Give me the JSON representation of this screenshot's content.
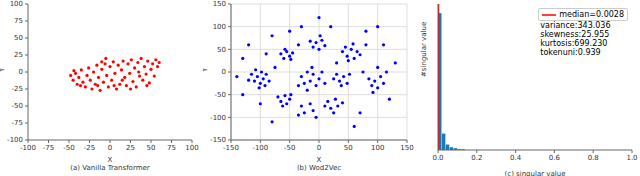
{
  "chart_data": [
    {
      "type": "scatter",
      "title": "(a) Vanilla Transformer",
      "xlabel": "X",
      "ylabel": "Y",
      "color": "#ff0000",
      "marker": "circle",
      "grid": false,
      "xlim": [
        -100,
        100
      ],
      "xticks": [
        -100,
        -75,
        -50,
        -25,
        0,
        25,
        50,
        75,
        100
      ],
      "ylim": [
        -100,
        100
      ],
      "yticks": [
        -100,
        -75,
        -50,
        -25,
        0,
        25,
        50,
        75,
        100
      ],
      "x": [
        -48,
        -45,
        -42,
        -40,
        -38,
        -35,
        -33,
        -30,
        -28,
        -26,
        -24,
        -22,
        -20,
        -18,
        -16,
        -14,
        -12,
        -10,
        -8,
        -6,
        -4,
        -2,
        0,
        2,
        4,
        6,
        8,
        10,
        12,
        14,
        16,
        18,
        20,
        22,
        24,
        26,
        28,
        30,
        32,
        34,
        36,
        38,
        40,
        42,
        44,
        46,
        48,
        50,
        52,
        54,
        56,
        58,
        60,
        -36,
        -15,
        5,
        15,
        -5,
        25,
        45,
        -44,
        35,
        -10
      ],
      "values": [
        -5,
        -12,
        -2,
        -18,
        -8,
        3,
        -15,
        -22,
        -5,
        6,
        -12,
        -25,
        0,
        -18,
        10,
        -8,
        -27,
        4,
        -15,
        12,
        -5,
        -22,
        8,
        -12,
        15,
        -2,
        -25,
        10,
        -18,
        3,
        16,
        -8,
        -20,
        12,
        -2,
        18,
        -14,
        6,
        -22,
        14,
        -6,
        20,
        -12,
        8,
        -3,
        16,
        -16,
        4,
        12,
        -6,
        18,
        8,
        14,
        -20,
        -20,
        -20,
        -12,
        20,
        -25,
        -20,
        2,
        0,
        15
      ]
    },
    {
      "type": "scatter",
      "title": "(b) Wod2Vec",
      "xlabel": "X",
      "ylabel": "Y",
      "color": "#0000ff",
      "marker": "circle",
      "grid": true,
      "xlim": [
        -150,
        150
      ],
      "xticks": [
        -150,
        -100,
        -50,
        0,
        50,
        100,
        150
      ],
      "ylim": [
        -150,
        150
      ],
      "yticks": [
        -150,
        -100,
        -50,
        0,
        50,
        100,
        150
      ],
      "x": [
        -115,
        -110,
        -105,
        -100,
        -98,
        -95,
        -92,
        -108,
        -120,
        -90,
        -102,
        -85,
        -65,
        -60,
        -55,
        -50,
        -48,
        -58,
        -45,
        -70,
        -65,
        -58,
        -55,
        -50,
        -62,
        -48,
        -10,
        -5,
        0,
        5,
        10,
        -15,
        2,
        40,
        48,
        55,
        60,
        65,
        50,
        70,
        45,
        58,
        -30,
        -25,
        -20,
        -15,
        -10,
        -5,
        0,
        -20,
        -35,
        5,
        -12,
        10,
        30,
        35,
        42,
        48,
        38,
        52,
        25,
        85,
        90,
        95,
        100,
        105,
        110,
        92,
        115,
        100,
        15,
        20,
        28,
        32,
        40,
        25,
        10,
        -30,
        -25,
        -15,
        -10,
        -35,
        -5,
        -130,
        -120,
        -80,
        -90,
        -30,
        20,
        80,
        110,
        130,
        120,
        70,
        -100,
        -130,
        -80,
        60,
        0,
        100,
        -50,
        75,
        -75,
        -35,
        30,
        80,
        -140
      ],
      "values": [
        -5,
        -20,
        -10,
        -25,
        0,
        -15,
        -30,
        5,
        -18,
        -5,
        -35,
        -20,
        40,
        30,
        45,
        35,
        28,
        50,
        42,
        -55,
        -65,
        -52,
        -70,
        -60,
        -75,
        -50,
        55,
        65,
        50,
        70,
        58,
        68,
        80,
        45,
        35,
        50,
        30,
        45,
        25,
        38,
        55,
        62,
        -10,
        -25,
        0,
        -20,
        -5,
        -30,
        -15,
        -40,
        -30,
        0,
        10,
        -25,
        -5,
        -20,
        -10,
        -25,
        -30,
        -5,
        -15,
        -15,
        -30,
        -20,
        -35,
        -10,
        -25,
        -45,
        0,
        10,
        -65,
        -80,
        -60,
        -75,
        -68,
        -90,
        -75,
        -75,
        -90,
        -70,
        -85,
        -95,
        -100,
        30,
        60,
        80,
        40,
        100,
        100,
        90,
        60,
        20,
        -60,
        -90,
        -70,
        -50,
        -110,
        -120,
        120,
        100,
        90,
        0,
        10,
        60,
        20,
        60,
        -10
      ]
    },
    {
      "type": "histogram",
      "xlabel": "(c) singular value",
      "ylabel": "#singular value",
      "color": "#1f77b4",
      "tick_labels": "x",
      "legend": "upper right",
      "xlim": [
        0,
        1
      ],
      "xticks": [
        {
          "value": 0,
          "label": "0.0"
        },
        0.2,
        0.4,
        0.6,
        0.8,
        {
          "value": 1,
          "label": "1.0"
        }
      ],
      "ylim": [
        0,
        160
      ],
      "yticks": [
        0,
        20,
        40,
        60,
        80,
        100,
        120,
        140,
        160
      ],
      "bins": [
        0,
        0.02,
        0.04,
        0.06,
        0.08,
        0.1,
        0.12,
        0.14,
        0.16,
        0.18,
        0.2,
        0.22,
        0.24,
        0.26,
        0.28,
        0.3,
        0.32,
        0.34,
        0.36,
        0.38,
        0.4,
        0.42,
        0.44,
        0.46,
        0.48,
        0.5,
        0.52,
        0.54,
        0.56,
        0.58,
        0.6,
        0.62,
        0.64,
        0.66,
        0.68,
        0.7,
        0.72,
        0.74,
        0.76,
        0.78,
        0.8,
        0.82,
        0.84,
        0.86,
        0.88,
        0.9,
        0.92,
        0.94,
        0.96,
        0.98,
        1
      ],
      "counts": [
        150,
        18,
        6,
        3,
        2,
        1,
        1,
        0,
        0,
        0,
        0,
        0,
        0,
        0,
        0,
        0,
        0,
        0,
        0,
        0,
        0,
        0,
        0,
        0,
        0,
        0,
        0,
        0,
        0,
        0,
        0,
        0,
        0,
        0,
        0,
        0,
        0,
        0,
        0,
        0,
        0,
        0,
        0,
        0,
        0,
        0,
        0,
        0,
        0,
        0
      ],
      "reference_line": {
        "x": 0.0028,
        "label": "median=0.0028",
        "color": "#ff0000"
      },
      "annotations": [
        "variance:343.036",
        "skewness:25.955",
        "kurtosis:699.230",
        "tokenuni:0.939"
      ]
    }
  ]
}
